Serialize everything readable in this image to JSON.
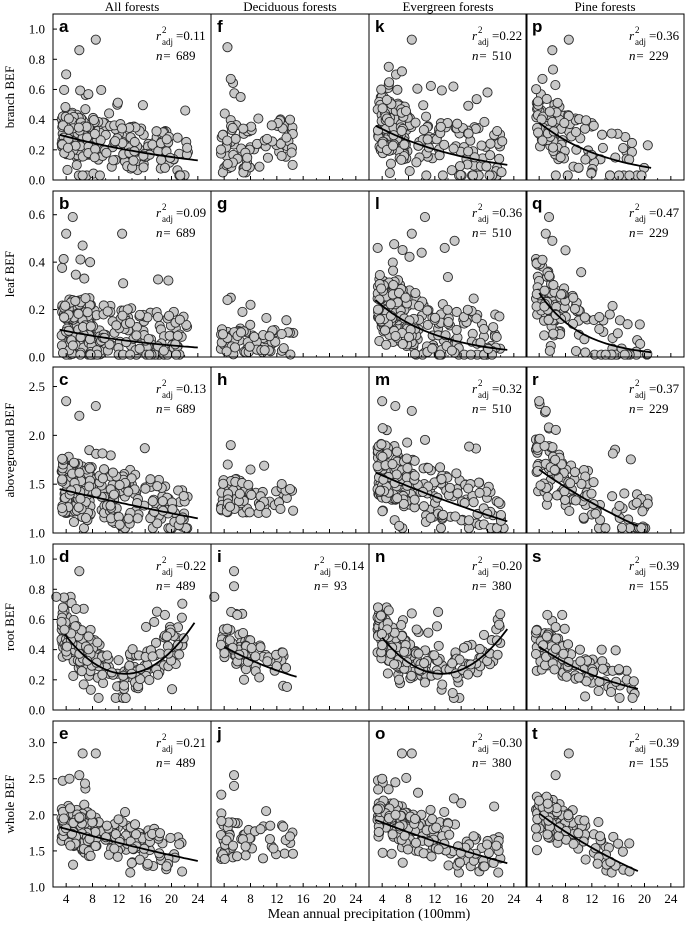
{
  "chart_data": {
    "type": "scatter",
    "column_titles": [
      "All forests",
      "Deciduous forests",
      "Evergreen forests",
      "Pine forests"
    ],
    "xlabel": "Mean annual precipitation (100mm)",
    "xlim": [
      2,
      26
    ],
    "x_ticks": [
      4,
      8,
      12,
      16,
      20,
      24
    ],
    "x_tick_labels": [
      "4",
      "8",
      "12",
      "16",
      "20",
      "24"
    ],
    "rows": [
      {
        "ylabel": "branch BEF",
        "ylim": [
          0,
          1.1
        ],
        "y_ticks": [
          0,
          0.2,
          0.4,
          0.6,
          0.8,
          1.0
        ],
        "y_tick_labels": [
          "0.0",
          "0.2",
          "0.4",
          "0.6",
          "0.8",
          "1.0"
        ]
      },
      {
        "ylabel": "leaf BEF",
        "ylim": [
          0,
          0.7
        ],
        "y_ticks": [
          0,
          0.2,
          0.4,
          0.6
        ],
        "y_tick_labels": [
          "0.0",
          "0.2",
          "0.4",
          "0.6"
        ]
      },
      {
        "ylabel": "aboveground BEF",
        "ylim": [
          1.0,
          2.7
        ],
        "y_ticks": [
          1.0,
          1.5,
          2.0,
          2.5
        ],
        "y_tick_labels": [
          "1.0",
          "1.5",
          "2.0",
          "2.5"
        ]
      },
      {
        "ylabel": "root BEF",
        "ylim": [
          0,
          1.1
        ],
        "y_ticks": [
          0,
          0.2,
          0.4,
          0.6,
          0.8,
          1.0
        ],
        "y_tick_labels": [
          "0.0",
          "0.2",
          "0.4",
          "0.6",
          "0.8",
          "1.0"
        ]
      },
      {
        "ylabel": "whole BEF",
        "ylim": [
          1.0,
          3.3
        ],
        "y_ticks": [
          1.0,
          1.5,
          2.0,
          2.5,
          3.0
        ],
        "y_tick_labels": [
          "1.0",
          "1.5",
          "2.0",
          "2.5",
          "3.0"
        ]
      }
    ],
    "panels": [
      {
        "id": "a",
        "row": 0,
        "col": 0,
        "r2_label": "r",
        "r2_sup": "2",
        "r2_sub": "adj",
        "r2": "=0.11",
        "n": "689",
        "n_label": "n=",
        "fit": {
          "form": "exp",
          "x_start": 3,
          "x_end": 24,
          "y_start": 0.3,
          "y_end": 0.13
        },
        "cloud": {
          "count": 260,
          "x_range": [
            3.3,
            22.5
          ],
          "y_range": [
            0.03,
            0.72
          ],
          "y_center": 0.2
        }
      },
      {
        "id": "f",
        "row": 0,
        "col": 1,
        "r2_label": "",
        "r2_sup": "",
        "r2_sub": "",
        "r2": "",
        "n": "",
        "n_label": "",
        "fit": null,
        "cloud": {
          "count": 85,
          "x_range": [
            3.5,
            14.5
          ],
          "y_range": [
            0.05,
            0.88
          ],
          "y_center": 0.22
        }
      },
      {
        "id": "k",
        "row": 0,
        "col": 2,
        "r2_label": "r",
        "r2_sup": "2",
        "r2_sub": "adj",
        "r2": "=0.22",
        "n": "510",
        "n_label": "n=",
        "fit": {
          "form": "exp",
          "x_start": 3,
          "x_end": 23,
          "y_start": 0.36,
          "y_end": 0.1
        },
        "cloud": {
          "count": 230,
          "x_range": [
            3.3,
            22.5
          ],
          "y_range": [
            0.03,
            0.93
          ],
          "y_center": 0.2
        }
      },
      {
        "id": "p",
        "row": 0,
        "col": 3,
        "r2_label": "r",
        "r2_sup": "2",
        "r2_sub": "adj",
        "r2": "=0.36",
        "n": "229",
        "n_label": "n=",
        "fit": {
          "form": "exp",
          "x_start": 4,
          "x_end": 21,
          "y_start": 0.38,
          "y_end": 0.08
        },
        "cloud": {
          "count": 130,
          "x_range": [
            3.5,
            20.5
          ],
          "y_range": [
            0.03,
            0.93
          ],
          "y_center": 0.22
        }
      },
      {
        "id": "b",
        "row": 1,
        "col": 0,
        "r2_label": "r",
        "r2_sup": "2",
        "r2_sub": "adj",
        "r2": "=0.09",
        "n": "689",
        "n_label": "n=",
        "fit": {
          "form": "exp",
          "x_start": 3,
          "x_end": 24,
          "y_start": 0.115,
          "y_end": 0.04
        },
        "cloud": {
          "count": 260,
          "x_range": [
            3.3,
            22.5
          ],
          "y_range": [
            0.01,
            0.6
          ],
          "y_center": 0.07
        }
      },
      {
        "id": "g",
        "row": 1,
        "col": 1,
        "r2_label": "",
        "r2_sup": "",
        "r2_sub": "",
        "r2": "",
        "n": "",
        "n_label": "",
        "fit": null,
        "cloud": {
          "count": 75,
          "x_range": [
            3.5,
            14.5
          ],
          "y_range": [
            0.01,
            0.26
          ],
          "y_center": 0.06
        }
      },
      {
        "id": "l",
        "row": 1,
        "col": 2,
        "r2_label": "r",
        "r2_sup": "2",
        "r2_sub": "adj",
        "r2": "=0.36",
        "n": "510",
        "n_label": "n=",
        "fit": {
          "form": "exp",
          "x_start": 3,
          "x_end": 23,
          "y_start": 0.24,
          "y_end": 0.03
        },
        "cloud": {
          "count": 230,
          "x_range": [
            3.3,
            22.5
          ],
          "y_range": [
            0.01,
            0.6
          ],
          "y_center": 0.08
        }
      },
      {
        "id": "q",
        "row": 1,
        "col": 3,
        "r2_label": "r",
        "r2_sup": "2",
        "r2_sub": "adj",
        "r2": "=0.47",
        "n": "229",
        "n_label": "n=",
        "fit": {
          "form": "exp",
          "x_start": 4,
          "x_end": 21,
          "y_start": 0.27,
          "y_end": 0.02
        },
        "cloud": {
          "count": 130,
          "x_range": [
            3.5,
            20.5
          ],
          "y_range": [
            0.01,
            0.6
          ],
          "y_center": 0.09
        }
      },
      {
        "id": "c",
        "row": 2,
        "col": 0,
        "r2_label": "r",
        "r2_sup": "2",
        "r2_sub": "adj",
        "r2": "=0.13",
        "n": "689",
        "n_label": "n=",
        "fit": {
          "form": "exp",
          "x_start": 3,
          "x_end": 24,
          "y_start": 1.45,
          "y_end": 1.15
        },
        "cloud": {
          "count": 260,
          "x_range": [
            3.3,
            22.5
          ],
          "y_range": [
            1.05,
            2.38
          ],
          "y_center": 1.35
        }
      },
      {
        "id": "h",
        "row": 2,
        "col": 1,
        "r2_label": "",
        "r2_sup": "",
        "r2_sub": "",
        "r2": "",
        "n": "",
        "n_label": "",
        "fit": null,
        "cloud": {
          "count": 80,
          "x_range": [
            3.5,
            14.5
          ],
          "y_range": [
            1.08,
            1.92
          ],
          "y_center": 1.35
        }
      },
      {
        "id": "m",
        "row": 2,
        "col": 2,
        "r2_label": "r",
        "r2_sup": "2",
        "r2_sub": "adj",
        "r2": "=0.32",
        "n": "510",
        "n_label": "n=",
        "fit": {
          "form": "exp",
          "x_start": 3,
          "x_end": 23,
          "y_start": 1.62,
          "y_end": 1.12
        },
        "cloud": {
          "count": 230,
          "x_range": [
            3.3,
            22.5
          ],
          "y_range": [
            1.05,
            2.38
          ],
          "y_center": 1.35
        }
      },
      {
        "id": "r",
        "row": 2,
        "col": 3,
        "r2_label": "r",
        "r2_sup": "2",
        "r2_sub": "adj",
        "r2": "=0.37",
        "n": "229",
        "n_label": "n=",
        "fit": {
          "form": "exp",
          "x_start": 4,
          "x_end": 19,
          "y_start": 1.65,
          "y_end": 1.07
        },
        "cloud": {
          "count": 130,
          "x_range": [
            3.5,
            20.5
          ],
          "y_range": [
            1.05,
            2.38
          ],
          "y_center": 1.35
        }
      },
      {
        "id": "d",
        "row": 3,
        "col": 0,
        "r2_label": "r",
        "r2_sup": "2",
        "r2_sub": "adj",
        "r2": "=0.22",
        "n": "489",
        "n_label": "n=",
        "fit": {
          "form": "quad",
          "x_start": 3.8,
          "x_end": 23.5,
          "y_start": 0.5,
          "y_end": 0.46,
          "x_min": 13,
          "y_min": 0.24
        },
        "cloud": {
          "count": 230,
          "x_range": [
            3.3,
            22
          ],
          "y_range": [
            0.08,
            0.75
          ],
          "y_center": 0.3
        }
      },
      {
        "id": "i",
        "row": 3,
        "col": 1,
        "r2_label": "r",
        "r2_sup": "2",
        "r2_sub": "adj",
        "r2": "=0.14",
        "n": "93",
        "n_label": "n=",
        "fit": {
          "form": "exp",
          "x_start": 4,
          "x_end": 15,
          "y_start": 0.42,
          "y_end": 0.22
        },
        "cloud": {
          "count": 70,
          "x_range": [
            3.5,
            14.5
          ],
          "y_range": [
            0.1,
            0.65
          ],
          "y_center": 0.32
        }
      },
      {
        "id": "n",
        "row": 3,
        "col": 2,
        "r2_label": "r",
        "r2_sup": "2",
        "r2_sub": "adj",
        "r2": "=0.20",
        "n": "380",
        "n_label": "n=",
        "fit": {
          "form": "quad",
          "x_start": 4,
          "x_end": 23,
          "y_start": 0.48,
          "y_end": 0.42,
          "x_min": 13,
          "y_min": 0.24
        },
        "cloud": {
          "count": 200,
          "x_range": [
            3.3,
            22
          ],
          "y_range": [
            0.08,
            0.68
          ],
          "y_center": 0.3
        }
      },
      {
        "id": "s",
        "row": 3,
        "col": 3,
        "r2_label": "r",
        "r2_sup": "2",
        "r2_sub": "adj",
        "r2": "=0.39",
        "n": "155",
        "n_label": "n=",
        "fit": {
          "form": "exp",
          "x_start": 4,
          "x_end": 19,
          "y_start": 0.42,
          "y_end": 0.14
        },
        "cloud": {
          "count": 110,
          "x_range": [
            3.5,
            18.5
          ],
          "y_range": [
            0.08,
            0.63
          ],
          "y_center": 0.3
        }
      },
      {
        "id": "e",
        "row": 4,
        "col": 0,
        "r2_label": "r",
        "r2_sup": "2",
        "r2_sub": "adj",
        "r2": "=0.21",
        "n": "489",
        "n_label": "n=",
        "fit": {
          "form": "exp",
          "x_start": 3,
          "x_end": 24,
          "y_start": 1.83,
          "y_end": 1.36
        },
        "cloud": {
          "count": 230,
          "x_range": [
            3.3,
            22
          ],
          "y_range": [
            1.2,
            2.55
          ],
          "y_center": 1.65
        }
      },
      {
        "id": "j",
        "row": 4,
        "col": 1,
        "r2_label": "",
        "r2_sup": "",
        "r2_sub": "",
        "r2": "",
        "n": "",
        "n_label": "",
        "fit": null,
        "cloud": {
          "count": 55,
          "x_range": [
            3.5,
            14.5
          ],
          "y_range": [
            1.25,
            2.55
          ],
          "y_center": 1.6
        }
      },
      {
        "id": "o",
        "row": 4,
        "col": 2,
        "r2_label": "r",
        "r2_sup": "2",
        "r2_sub": "adj",
        "r2": "=0.30",
        "n": "380",
        "n_label": "n=",
        "fit": {
          "form": "exp",
          "x_start": 3,
          "x_end": 23,
          "y_start": 1.93,
          "y_end": 1.33
        },
        "cloud": {
          "count": 200,
          "x_range": [
            3.3,
            22
          ],
          "y_range": [
            1.2,
            2.6
          ],
          "y_center": 1.65
        }
      },
      {
        "id": "t",
        "row": 4,
        "col": 3,
        "r2_label": "r",
        "r2_sup": "2",
        "r2_sub": "adj",
        "r2": "=0.39",
        "n": "155",
        "n_label": "n=",
        "fit": {
          "form": "exp",
          "x_start": 4,
          "x_end": 19,
          "y_start": 2.02,
          "y_end": 1.22
        },
        "cloud": {
          "count": 110,
          "x_range": [
            3.5,
            18.5
          ],
          "y_range": [
            1.2,
            2.6
          ],
          "y_center": 1.65
        }
      }
    ],
    "outliers": [
      {
        "panel": "a",
        "points": [
          [
            6,
            0.86
          ],
          [
            8.5,
            0.93
          ],
          [
            4,
            0.7
          ]
        ]
      },
      {
        "panel": "f",
        "points": [
          [
            4.5,
            0.88
          ],
          [
            5,
            0.67
          ],
          [
            6.5,
            0.55
          ],
          [
            14,
            0.4
          ]
        ]
      },
      {
        "panel": "k",
        "points": [
          [
            8.5,
            0.93
          ],
          [
            5,
            0.75
          ],
          [
            7,
            0.72
          ],
          [
            20,
            0.58
          ]
        ]
      },
      {
        "panel": "p",
        "points": [
          [
            8.5,
            0.93
          ],
          [
            6,
            0.86
          ],
          [
            4.5,
            0.67
          ],
          [
            20.5,
            0.23
          ]
        ]
      },
      {
        "panel": "b",
        "points": [
          [
            5,
            0.59
          ],
          [
            4,
            0.52
          ],
          [
            12.5,
            0.52
          ],
          [
            6.5,
            0.47
          ]
        ]
      },
      {
        "panel": "g",
        "points": [
          [
            5,
            0.25
          ],
          [
            4.5,
            0.24
          ],
          [
            8,
            0.22
          ]
        ]
      },
      {
        "panel": "l",
        "points": [
          [
            10.5,
            0.59
          ],
          [
            8.5,
            0.52
          ],
          [
            15,
            0.49
          ],
          [
            13.5,
            0.46
          ],
          [
            10,
            0.44
          ]
        ]
      },
      {
        "panel": "q",
        "points": [
          [
            5.5,
            0.59
          ],
          [
            5,
            0.52
          ],
          [
            6,
            0.49
          ],
          [
            8,
            0.45
          ],
          [
            4.5,
            0.41
          ]
        ]
      },
      {
        "panel": "c",
        "points": [
          [
            4,
            2.35
          ],
          [
            8.5,
            2.3
          ],
          [
            6,
            2.2
          ]
        ]
      },
      {
        "panel": "h",
        "points": [
          [
            5,
            1.9
          ],
          [
            8,
            1.65
          ],
          [
            14,
            1.45
          ]
        ]
      },
      {
        "panel": "m",
        "points": [
          [
            4,
            2.35
          ],
          [
            6,
            2.3
          ],
          [
            8.5,
            2.25
          ]
        ]
      },
      {
        "panel": "r",
        "points": [
          [
            4,
            2.35
          ],
          [
            5,
            2.25
          ],
          [
            20.5,
            1.3
          ]
        ]
      },
      {
        "panel": "d",
        "points": [
          [
            6,
            0.92
          ],
          [
            2.5,
            0.75
          ],
          [
            5.5,
            0.67
          ],
          [
            19,
            0.63
          ]
        ]
      },
      {
        "panel": "i",
        "points": [
          [
            5.5,
            0.92
          ],
          [
            5.5,
            0.82
          ],
          [
            2.5,
            0.75
          ],
          [
            6,
            0.63
          ]
        ]
      },
      {
        "panel": "n",
        "points": [
          [
            12.5,
            0.65
          ],
          [
            8.5,
            0.64
          ],
          [
            5,
            0.66
          ]
        ]
      },
      {
        "panel": "s",
        "points": [
          [
            7.5,
            0.63
          ],
          [
            6.5,
            0.55
          ],
          [
            13.5,
            0.4
          ]
        ]
      },
      {
        "panel": "e",
        "points": [
          [
            6.5,
            2.85
          ],
          [
            8.5,
            2.85
          ],
          [
            4.5,
            2.5
          ],
          [
            6,
            2.55
          ]
        ]
      },
      {
        "panel": "j",
        "points": [
          [
            5.5,
            2.55
          ],
          [
            5.5,
            2.4
          ],
          [
            11,
            1.85
          ],
          [
            14,
            1.7
          ]
        ]
      },
      {
        "panel": "o",
        "points": [
          [
            7,
            2.85
          ],
          [
            8.5,
            2.85
          ],
          [
            4,
            2.5
          ],
          [
            6,
            2.45
          ]
        ]
      },
      {
        "panel": "t",
        "points": [
          [
            8.5,
            2.85
          ],
          [
            6.5,
            2.55
          ],
          [
            13,
            1.9
          ],
          [
            16,
            1.6
          ]
        ]
      }
    ]
  }
}
